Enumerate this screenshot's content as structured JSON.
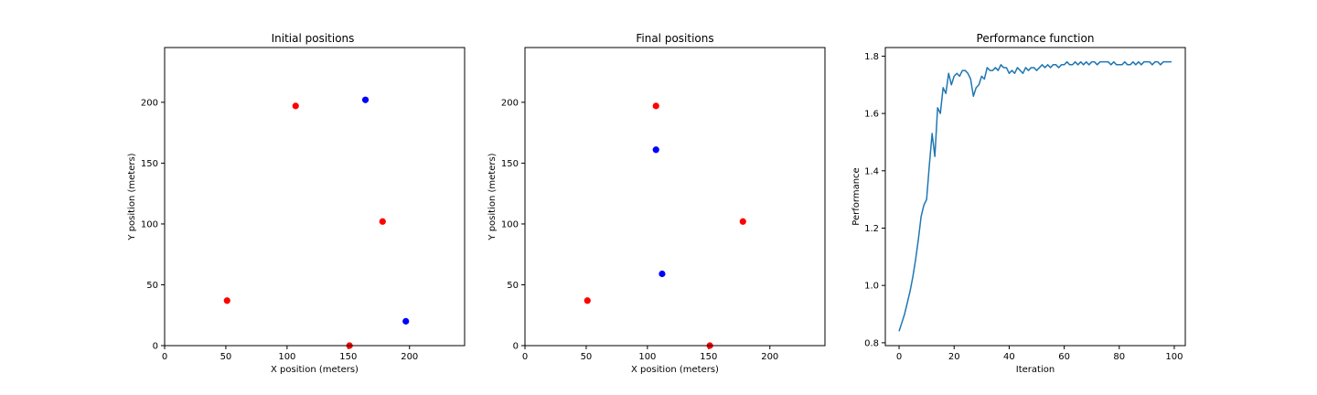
{
  "chart_data": [
    {
      "type": "scatter",
      "title": "Initial positions",
      "xlabel": "X position (meters)",
      "ylabel": "Y position (meters)",
      "xlim": [
        0,
        245
      ],
      "ylim": [
        0,
        245
      ],
      "xticks": [
        0,
        50,
        100,
        150,
        200
      ],
      "yticks": [
        0,
        50,
        100,
        150,
        200
      ],
      "grid": false,
      "series": [
        {
          "color": "#ff0000",
          "points": [
            [
              107,
              197
            ],
            [
              178,
              102
            ],
            [
              51,
              37
            ],
            [
              151,
              0
            ]
          ]
        },
        {
          "color": "#0000ff",
          "points": [
            [
              164,
              202
            ],
            [
              197,
              20
            ]
          ]
        }
      ]
    },
    {
      "type": "scatter",
      "title": "Final positions",
      "xlabel": "X position (meters)",
      "ylabel": "Y position (meters)",
      "xlim": [
        0,
        245
      ],
      "ylim": [
        0,
        245
      ],
      "xticks": [
        0,
        50,
        100,
        150,
        200
      ],
      "yticks": [
        0,
        50,
        100,
        150,
        200
      ],
      "grid": false,
      "series": [
        {
          "color": "#ff0000",
          "points": [
            [
              107,
              197
            ],
            [
              178,
              102
            ],
            [
              51,
              37
            ],
            [
              151,
              0
            ]
          ]
        },
        {
          "color": "#0000ff",
          "points": [
            [
              107,
              161
            ],
            [
              112,
              59
            ]
          ]
        }
      ]
    },
    {
      "type": "line",
      "title": "Performance function",
      "xlabel": "Iteration",
      "ylabel": "Performance",
      "xlim": [
        -5,
        104
      ],
      "ylim": [
        0.79,
        1.83
      ],
      "xticks": [
        0,
        20,
        40,
        60,
        80,
        100
      ],
      "yticks": [
        0.8,
        1.0,
        1.2,
        1.4,
        1.6,
        1.8
      ],
      "grid": false,
      "series": [
        {
          "color": "#1f77b4",
          "x": [
            0,
            1,
            2,
            3,
            4,
            5,
            6,
            7,
            8,
            9,
            10,
            11,
            12,
            13,
            14,
            15,
            16,
            17,
            18,
            19,
            20,
            21,
            22,
            23,
            24,
            25,
            26,
            27,
            28,
            29,
            30,
            31,
            32,
            33,
            34,
            35,
            36,
            37,
            38,
            39,
            40,
            41,
            42,
            43,
            44,
            45,
            46,
            47,
            48,
            49,
            50,
            51,
            52,
            53,
            54,
            55,
            56,
            57,
            58,
            59,
            60,
            61,
            62,
            63,
            64,
            65,
            66,
            67,
            68,
            69,
            70,
            71,
            72,
            73,
            74,
            75,
            76,
            77,
            78,
            79,
            80,
            81,
            82,
            83,
            84,
            85,
            86,
            87,
            88,
            89,
            90,
            91,
            92,
            93,
            94,
            95,
            96,
            97,
            98,
            99
          ],
          "y": [
            0.84,
            0.87,
            0.9,
            0.94,
            0.98,
            1.03,
            1.09,
            1.16,
            1.24,
            1.28,
            1.3,
            1.42,
            1.53,
            1.45,
            1.62,
            1.6,
            1.69,
            1.67,
            1.74,
            1.7,
            1.73,
            1.74,
            1.73,
            1.75,
            1.75,
            1.74,
            1.72,
            1.66,
            1.69,
            1.7,
            1.73,
            1.72,
            1.76,
            1.75,
            1.75,
            1.76,
            1.75,
            1.77,
            1.76,
            1.76,
            1.74,
            1.75,
            1.74,
            1.76,
            1.75,
            1.74,
            1.76,
            1.75,
            1.76,
            1.76,
            1.75,
            1.76,
            1.77,
            1.76,
            1.77,
            1.76,
            1.77,
            1.77,
            1.76,
            1.77,
            1.77,
            1.78,
            1.77,
            1.77,
            1.78,
            1.77,
            1.78,
            1.77,
            1.78,
            1.77,
            1.78,
            1.78,
            1.77,
            1.78,
            1.78,
            1.78,
            1.78,
            1.77,
            1.78,
            1.77,
            1.77,
            1.77,
            1.78,
            1.77,
            1.77,
            1.78,
            1.77,
            1.78,
            1.77,
            1.78,
            1.78,
            1.78,
            1.77,
            1.78,
            1.78,
            1.77,
            1.78,
            1.78,
            1.78,
            1.78
          ]
        }
      ]
    }
  ]
}
